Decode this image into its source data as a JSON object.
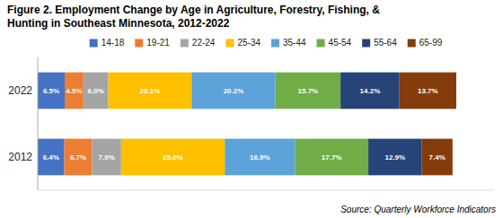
{
  "chart_data": {
    "type": "bar",
    "orientation": "horizontal",
    "stacked": true,
    "title": "Figure 2. Employment Change by Age in Agriculture, Forestry, Fishing, &",
    "subtitle": "Hunting in Southeast Minnesota, 2012-2022",
    "annotations": [
      "Source: Quarterly Workforce Indicators"
    ],
    "categories": [
      "2022",
      "2012"
    ],
    "series": [
      {
        "name": "14-18",
        "color": "#4472C4",
        "values": [
          6.5,
          6.4
        ],
        "value_labels": [
          "6.5%",
          "6.4%"
        ]
      },
      {
        "name": "19-21",
        "color": "#ED7D31",
        "values": [
          4.5,
          6.7
        ],
        "value_labels": [
          "4.5%",
          "6.7%"
        ]
      },
      {
        "name": "22-24",
        "color": "#A5A5A5",
        "values": [
          6.0,
          7.0
        ],
        "value_labels": [
          "6.0%",
          "7.0%"
        ]
      },
      {
        "name": "25-34",
        "color": "#FFC000",
        "values": [
          20.1,
          25.0
        ],
        "value_labels": [
          "20.1%",
          "25.0%"
        ]
      },
      {
        "name": "35-44",
        "color": "#5BA3D9",
        "values": [
          20.2,
          16.9
        ],
        "value_labels": [
          "20.2%",
          "16.9%"
        ]
      },
      {
        "name": "45-54",
        "color": "#70AD47",
        "values": [
          15.7,
          17.7
        ],
        "value_labels": [
          "15.7%",
          "17.7%"
        ]
      },
      {
        "name": "55-64",
        "color": "#264478",
        "values": [
          14.2,
          12.9
        ],
        "value_labels": [
          "14.2%",
          "12.9%"
        ]
      },
      {
        "name": "65-99",
        "color": "#843C0C",
        "values": [
          13.7,
          7.4
        ],
        "value_labels": [
          "13.7%",
          "7.4%"
        ]
      }
    ],
    "xlim": [
      0,
      110
    ],
    "data_labels": true,
    "tick_labels": "y",
    "grid": false,
    "legend": "top"
  }
}
